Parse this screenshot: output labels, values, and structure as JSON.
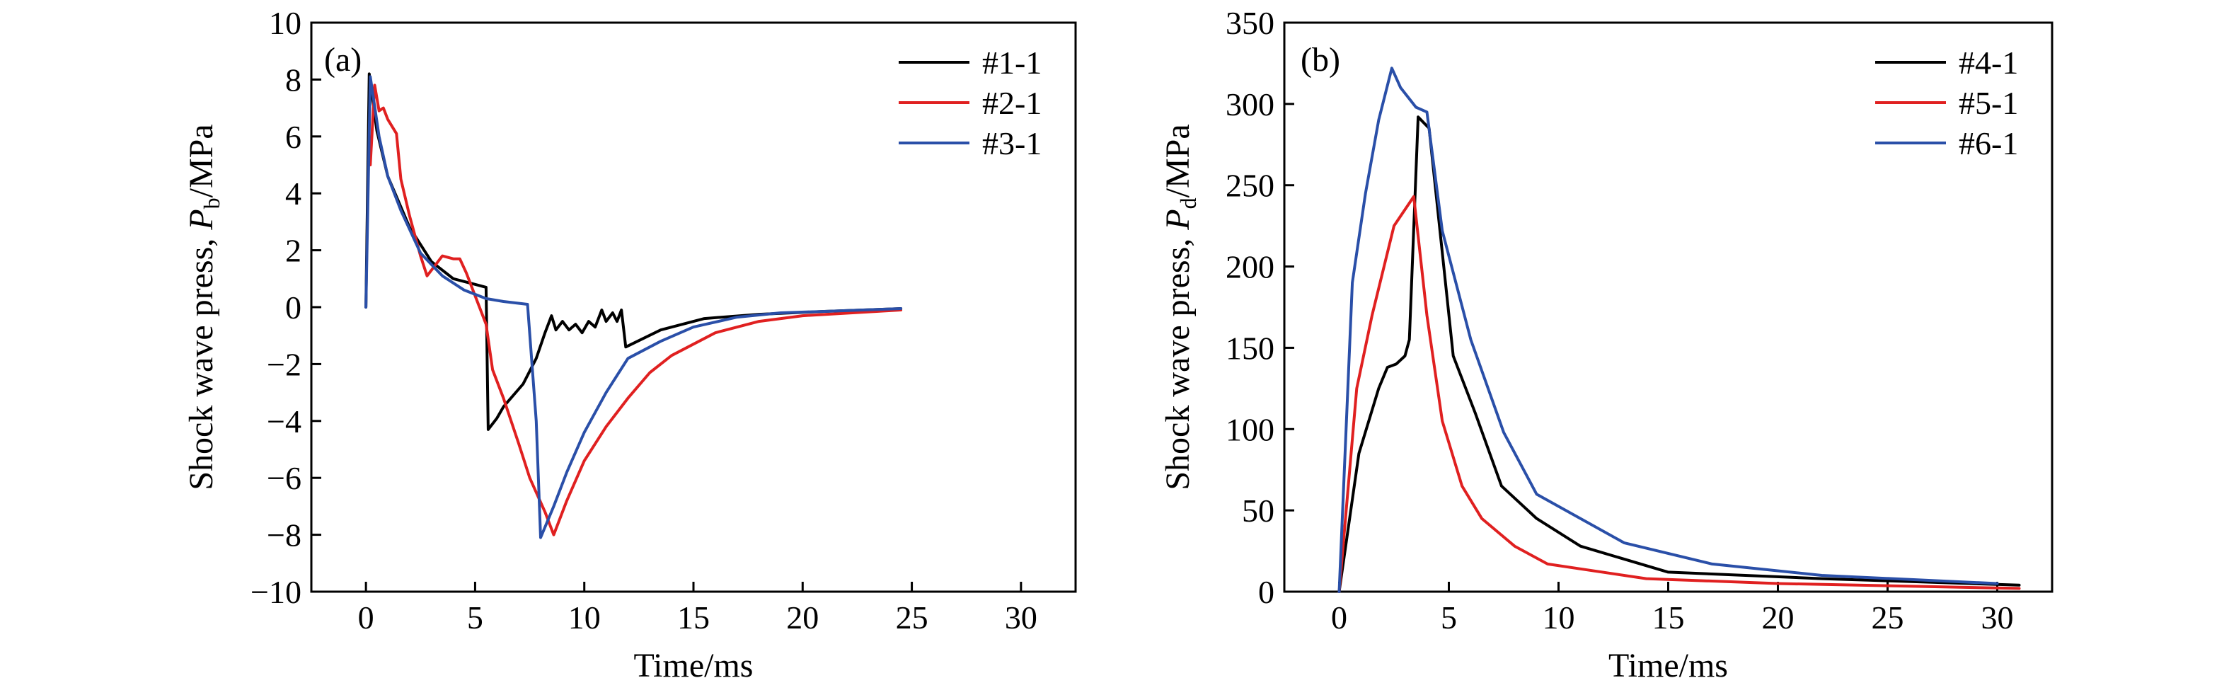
{
  "chart_data": [
    {
      "type": "line",
      "panel_label": "(a)",
      "xlabel": "Time/ms",
      "ylabel": {
        "prefix": "Shock wave press, ",
        "symbol": "P",
        "subscript": "b",
        "suffix": "/MPa"
      },
      "xlim": [
        -2.5,
        32.5
      ],
      "ylim": [
        -10,
        10
      ],
      "xticks": [
        0,
        5,
        10,
        15,
        20,
        25,
        30
      ],
      "yticks": [
        -10,
        -8,
        -6,
        -4,
        -2,
        0,
        2,
        4,
        6,
        8,
        10
      ],
      "ytick_labels": [
        "−10",
        "−8",
        "−6",
        "−4",
        "−2",
        "0",
        "2",
        "4",
        "6",
        "8",
        "10"
      ],
      "legend_position": "top-right",
      "grid": false,
      "series": [
        {
          "name": "#1-1",
          "color": "#000000",
          "points": [
            [
              0,
              0
            ],
            [
              0.15,
              8.2
            ],
            [
              0.5,
              6.2
            ],
            [
              1,
              4.6
            ],
            [
              2,
              2.8
            ],
            [
              3,
              1.6
            ],
            [
              4,
              1.0
            ],
            [
              5,
              0.8
            ],
            [
              5.5,
              0.7
            ],
            [
              5.6,
              -4.3
            ],
            [
              6,
              -3.9
            ],
            [
              6.3,
              -3.5
            ],
            [
              7.2,
              -2.7
            ],
            [
              7.8,
              -1.8
            ],
            [
              8.2,
              -0.9
            ],
            [
              8.5,
              -0.3
            ],
            [
              8.7,
              -0.8
            ],
            [
              9,
              -0.5
            ],
            [
              9.3,
              -0.8
            ],
            [
              9.6,
              -0.6
            ],
            [
              9.9,
              -0.9
            ],
            [
              10.2,
              -0.5
            ],
            [
              10.5,
              -0.7
            ],
            [
              10.8,
              -0.1
            ],
            [
              11,
              -0.5
            ],
            [
              11.3,
              -0.2
            ],
            [
              11.5,
              -0.5
            ],
            [
              11.7,
              -0.1
            ],
            [
              11.9,
              -1.4
            ],
            [
              13.5,
              -0.8
            ],
            [
              15.5,
              -0.4
            ],
            [
              18,
              -0.25
            ],
            [
              21,
              -0.15
            ],
            [
              24.5,
              -0.05
            ]
          ]
        },
        {
          "name": "#2-1",
          "color": "#e02020",
          "points": [
            [
              0.2,
              5.0
            ],
            [
              0.4,
              7.8
            ],
            [
              0.6,
              6.9
            ],
            [
              0.8,
              7.0
            ],
            [
              1,
              6.6
            ],
            [
              1.4,
              6.1
            ],
            [
              1.6,
              4.5
            ],
            [
              2,
              3.2
            ],
            [
              2.5,
              1.8
            ],
            [
              2.8,
              1.1
            ],
            [
              3.2,
              1.5
            ],
            [
              3.5,
              1.8
            ],
            [
              4,
              1.7
            ],
            [
              4.3,
              1.7
            ],
            [
              4.6,
              1.2
            ],
            [
              5,
              0.4
            ],
            [
              5.5,
              -0.6
            ],
            [
              5.8,
              -2.2
            ],
            [
              6.3,
              -3.2
            ],
            [
              7,
              -4.8
            ],
            [
              7.5,
              -6.0
            ],
            [
              8.2,
              -7.2
            ],
            [
              8.6,
              -8.0
            ],
            [
              9.2,
              -6.8
            ],
            [
              10,
              -5.4
            ],
            [
              11,
              -4.2
            ],
            [
              12,
              -3.2
            ],
            [
              13,
              -2.3
            ],
            [
              14,
              -1.7
            ],
            [
              16,
              -0.9
            ],
            [
              18,
              -0.5
            ],
            [
              20,
              -0.3
            ],
            [
              24.5,
              -0.1
            ]
          ]
        },
        {
          "name": "#3-1",
          "color": "#2a4fa8",
          "points": [
            [
              0,
              0
            ],
            [
              0.2,
              8.1
            ],
            [
              0.6,
              6.0
            ],
            [
              1,
              4.6
            ],
            [
              1.6,
              3.4
            ],
            [
              2.5,
              1.9
            ],
            [
              3.5,
              1.1
            ],
            [
              4.5,
              0.6
            ],
            [
              5.5,
              0.3
            ],
            [
              6.3,
              0.2
            ],
            [
              7.4,
              0.1
            ],
            [
              7.8,
              -4.0
            ],
            [
              8,
              -8.1
            ],
            [
              8.6,
              -7.0
            ],
            [
              9.2,
              -5.8
            ],
            [
              10,
              -4.4
            ],
            [
              11,
              -3.0
            ],
            [
              12,
              -1.8
            ],
            [
              13.5,
              -1.2
            ],
            [
              15,
              -0.7
            ],
            [
              17,
              -0.35
            ],
            [
              19,
              -0.2
            ],
            [
              21,
              -0.15
            ],
            [
              24.5,
              -0.05
            ]
          ]
        }
      ]
    },
    {
      "type": "line",
      "panel_label": "(b)",
      "xlabel": "Time/ms",
      "ylabel": {
        "prefix": "Shock wave press, ",
        "symbol": "P",
        "subscript": "d",
        "suffix": "/MPa"
      },
      "xlim": [
        -2.5,
        32.5
      ],
      "ylim": [
        0,
        350
      ],
      "xticks": [
        0,
        5,
        10,
        15,
        20,
        25,
        30
      ],
      "yticks": [
        0,
        50,
        100,
        150,
        200,
        250,
        300,
        350
      ],
      "ytick_labels": [
        "0",
        "50",
        "100",
        "150",
        "200",
        "250",
        "300",
        "350"
      ],
      "legend_position": "top-right",
      "grid": false,
      "series": [
        {
          "name": "#4-1",
          "color": "#000000",
          "points": [
            [
              0,
              0
            ],
            [
              0.9,
              85
            ],
            [
              1.8,
              125
            ],
            [
              2.2,
              138
            ],
            [
              2.6,
              140
            ],
            [
              3,
              145
            ],
            [
              3.2,
              155
            ],
            [
              3.6,
              292
            ],
            [
              4.1,
              285
            ],
            [
              5.2,
              145
            ],
            [
              6.2,
              110
            ],
            [
              7.4,
              65
            ],
            [
              9,
              45
            ],
            [
              11,
              28
            ],
            [
              15,
              12
            ],
            [
              22,
              8
            ],
            [
              31,
              4
            ]
          ]
        },
        {
          "name": "#5-1",
          "color": "#e02020",
          "points": [
            [
              0,
              0
            ],
            [
              0.8,
              125
            ],
            [
              1.5,
              170
            ],
            [
              2.5,
              225
            ],
            [
              3.4,
              243
            ],
            [
              4,
              170
            ],
            [
              4.7,
              105
            ],
            [
              5.6,
              65
            ],
            [
              6.5,
              45
            ],
            [
              8,
              28
            ],
            [
              9.5,
              17
            ],
            [
              11,
              14
            ],
            [
              14,
              8
            ],
            [
              20,
              5
            ],
            [
              31,
              2
            ]
          ]
        },
        {
          "name": "#6-1",
          "color": "#2a4fa8",
          "points": [
            [
              0,
              0
            ],
            [
              0.6,
              190
            ],
            [
              1.2,
              245
            ],
            [
              1.8,
              290
            ],
            [
              2.4,
              322
            ],
            [
              2.8,
              310
            ],
            [
              3.5,
              298
            ],
            [
              4,
              295
            ],
            [
              4.7,
              222
            ],
            [
              6,
              155
            ],
            [
              7.5,
              98
            ],
            [
              9,
              60
            ],
            [
              13,
              30
            ],
            [
              17,
              17
            ],
            [
              22,
              10
            ],
            [
              30,
              5
            ]
          ]
        }
      ]
    }
  ]
}
